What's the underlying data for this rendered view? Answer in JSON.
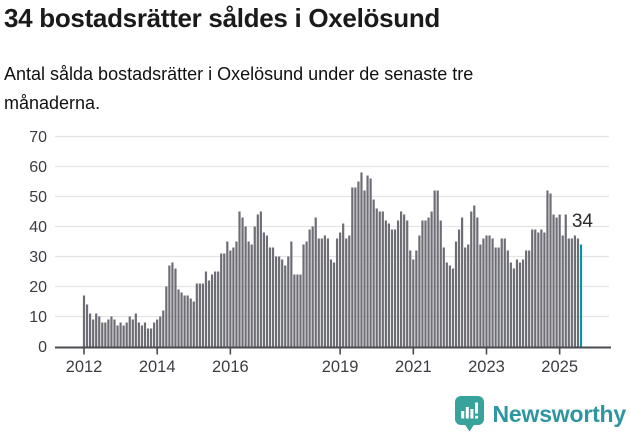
{
  "header": {
    "title": "34 bostadsrätter såldes i Oxelösund",
    "subtitle": "Antal sålda bostadsrätter i Oxelösund under de senaste tre månaderna."
  },
  "chart_data": {
    "type": "bar",
    "title": "34 bostadsrätter såldes i Oxelösund",
    "subtitle": "Antal sålda bostadsrätter i Oxelösund under de senaste tre månaderna.",
    "x_unit": "month",
    "x_start": "2012-01",
    "x_end": "2025-08",
    "values": [
      17,
      14,
      11,
      9,
      11,
      10,
      8,
      8,
      9,
      10,
      9,
      7,
      8,
      7,
      8,
      10,
      9,
      11,
      8,
      7,
      8,
      6,
      6,
      8,
      9,
      10,
      12,
      20,
      27,
      28,
      26,
      19,
      18,
      17,
      17,
      16,
      15,
      21,
      21,
      21,
      25,
      22,
      24,
      25,
      25,
      31,
      31,
      35,
      32,
      33,
      35,
      45,
      43,
      40,
      35,
      34,
      40,
      44,
      45,
      38,
      37,
      33,
      33,
      30,
      30,
      29,
      27,
      30,
      35,
      24,
      24,
      24,
      34,
      35,
      39,
      40,
      43,
      36,
      36,
      37,
      36,
      29,
      28,
      36,
      38,
      41,
      36,
      37,
      53,
      53,
      55,
      58,
      52,
      57,
      56,
      49,
      46,
      45,
      45,
      42,
      41,
      39,
      39,
      42,
      45,
      44,
      42,
      32,
      29,
      32,
      37,
      42,
      42,
      43,
      45,
      52,
      52,
      42,
      33,
      28,
      27,
      26,
      35,
      39,
      43,
      33,
      34,
      45,
      47,
      43,
      34,
      36,
      37,
      37,
      36,
      33,
      33,
      36,
      36,
      32,
      28,
      26,
      29,
      28,
      29,
      32,
      32,
      39,
      39,
      38,
      39,
      38,
      52,
      51,
      44,
      43,
      44,
      37,
      44,
      36,
      36,
      37,
      36,
      34
    ],
    "highlight": {
      "index": 163,
      "label": "34",
      "color": "#0099a0"
    },
    "ylim": [
      0,
      70
    ],
    "yticks": [
      0,
      10,
      20,
      30,
      40,
      50,
      60,
      70
    ],
    "xtick_years": [
      2012,
      2014,
      2016,
      2019,
      2021,
      2023,
      2025
    ],
    "bar_color": "#6d6d75",
    "grid": true,
    "legend": "none",
    "xlabel": "",
    "ylabel": ""
  },
  "footer": {
    "brand": "Newsworthy"
  },
  "colors": {
    "bar_gray": "#6d6d75",
    "bar_highlight": "#0099a0",
    "gridline": "#e4e4e4",
    "axis": "#4b4b52",
    "tick_text": "#3c3c43",
    "annotation_text": "#2b2b2b",
    "brand_teal": "#2e96a0",
    "logo_teal": "#38a39b",
    "background": "#ffffff"
  }
}
